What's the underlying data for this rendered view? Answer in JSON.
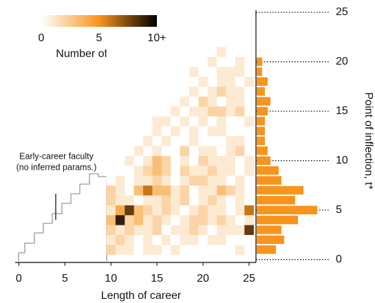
{
  "chart_data": {
    "type": "heatmap",
    "xlabel": "Length of career",
    "ylabel": "Point of inflection, t*",
    "annotation": [
      "Early-career faculty",
      "(no inferred params.)"
    ],
    "x": [
      10,
      11,
      12,
      13,
      14,
      15,
      16,
      17,
      18,
      19,
      20,
      21,
      22,
      23,
      24,
      25
    ],
    "y": [
      1,
      2,
      3,
      4,
      5,
      6,
      7,
      8,
      9,
      10,
      11,
      12,
      13,
      14,
      15,
      16,
      17,
      18,
      19,
      20,
      21
    ],
    "z": [
      [
        2,
        1,
        1,
        0,
        1,
        1,
        0,
        1,
        0,
        0,
        0,
        0,
        0,
        0,
        1,
        0
      ],
      [
        1,
        2,
        1,
        0,
        1,
        0,
        1,
        0,
        1,
        1,
        0,
        1,
        1,
        0,
        0,
        0
      ],
      [
        2,
        1,
        2,
        1,
        1,
        2,
        0,
        1,
        1,
        2,
        1,
        0,
        1,
        1,
        1,
        8
      ],
      [
        3,
        9,
        2,
        3,
        1,
        2,
        1,
        0,
        1,
        2,
        2,
        1,
        2,
        1,
        0,
        1
      ],
      [
        1,
        4,
        8,
        3,
        2,
        1,
        2,
        1,
        0,
        1,
        2,
        1,
        1,
        0,
        1,
        6
      ],
      [
        2,
        1,
        1,
        0,
        1,
        1,
        2,
        1,
        2,
        0,
        1,
        2,
        1,
        0,
        1,
        0
      ],
      [
        2,
        1,
        0,
        3,
        6,
        3,
        3,
        1,
        2,
        0,
        1,
        1,
        3,
        2,
        1,
        0
      ],
      [
        0,
        1,
        0,
        1,
        1,
        2,
        1,
        0,
        1,
        2,
        2,
        1,
        1,
        0,
        1,
        0
      ],
      [
        0,
        0,
        0,
        1,
        2,
        3,
        2,
        0,
        2,
        1,
        1,
        2,
        1,
        1,
        0,
        1
      ],
      [
        0,
        0,
        1,
        0,
        1,
        3,
        2,
        0,
        1,
        0,
        2,
        1,
        1,
        1,
        0,
        1
      ],
      [
        0,
        0,
        0,
        1,
        0,
        1,
        0,
        0,
        2,
        0,
        1,
        1,
        0,
        1,
        2,
        0
      ],
      [
        0,
        0,
        0,
        0,
        1,
        0,
        1,
        0,
        0,
        1,
        0,
        0,
        0,
        1,
        1,
        0
      ],
      [
        0,
        0,
        0,
        0,
        0,
        1,
        0,
        1,
        0,
        1,
        0,
        1,
        1,
        0,
        0,
        0
      ],
      [
        0,
        0,
        0,
        0,
        0,
        1,
        1,
        0,
        1,
        0,
        1,
        0,
        1,
        0,
        0,
        1
      ],
      [
        0,
        0,
        0,
        0,
        0,
        0,
        0,
        1,
        0,
        1,
        1,
        2,
        2,
        1,
        2,
        0
      ],
      [
        0,
        0,
        0,
        0,
        0,
        0,
        0,
        0,
        1,
        0,
        2,
        1,
        0,
        1,
        1,
        0
      ],
      [
        0,
        0,
        0,
        0,
        0,
        0,
        0,
        0,
        0,
        1,
        0,
        1,
        2,
        1,
        1,
        0
      ],
      [
        0,
        0,
        0,
        0,
        0,
        0,
        0,
        0,
        0,
        0,
        1,
        0,
        1,
        1,
        0,
        1
      ],
      [
        0,
        0,
        0,
        0,
        0,
        0,
        0,
        0,
        0,
        1,
        0,
        0,
        1,
        1,
        1,
        0
      ],
      [
        0,
        0,
        0,
        0,
        0,
        0,
        0,
        0,
        0,
        0,
        0,
        1,
        0,
        0,
        1,
        0
      ],
      [
        0,
        0,
        0,
        0,
        0,
        0,
        0,
        0,
        0,
        0,
        0,
        0,
        1,
        0,
        0,
        0
      ]
    ],
    "colormap": [
      "#ffffff",
      "#f7941d",
      "#000000"
    ],
    "xlim": [
      -0.4,
      25.75
    ],
    "ylim": [
      -0.3,
      25
    ],
    "xticks": [
      0,
      5,
      10,
      15,
      20,
      25
    ],
    "yticks": [
      0,
      5,
      10,
      15,
      20,
      25
    ],
    "colorbar": {
      "label": "Number of faculty",
      "lim": [
        0,
        10
      ],
      "ticks": [
        0,
        5,
        {
          "value": 10,
          "label": "10+"
        }
      ]
    },
    "histogram": {
      "y": [
        1,
        2,
        3,
        4,
        5,
        6,
        7,
        8,
        9,
        10,
        11,
        12,
        13,
        14,
        15,
        16,
        17,
        18,
        19,
        20
      ],
      "values": [
        7,
        10,
        9,
        15,
        22,
        14,
        17,
        9,
        8,
        5,
        4,
        3,
        3,
        3,
        4,
        5,
        3,
        4,
        2,
        2
      ],
      "color": "#f7941d"
    }
  }
}
